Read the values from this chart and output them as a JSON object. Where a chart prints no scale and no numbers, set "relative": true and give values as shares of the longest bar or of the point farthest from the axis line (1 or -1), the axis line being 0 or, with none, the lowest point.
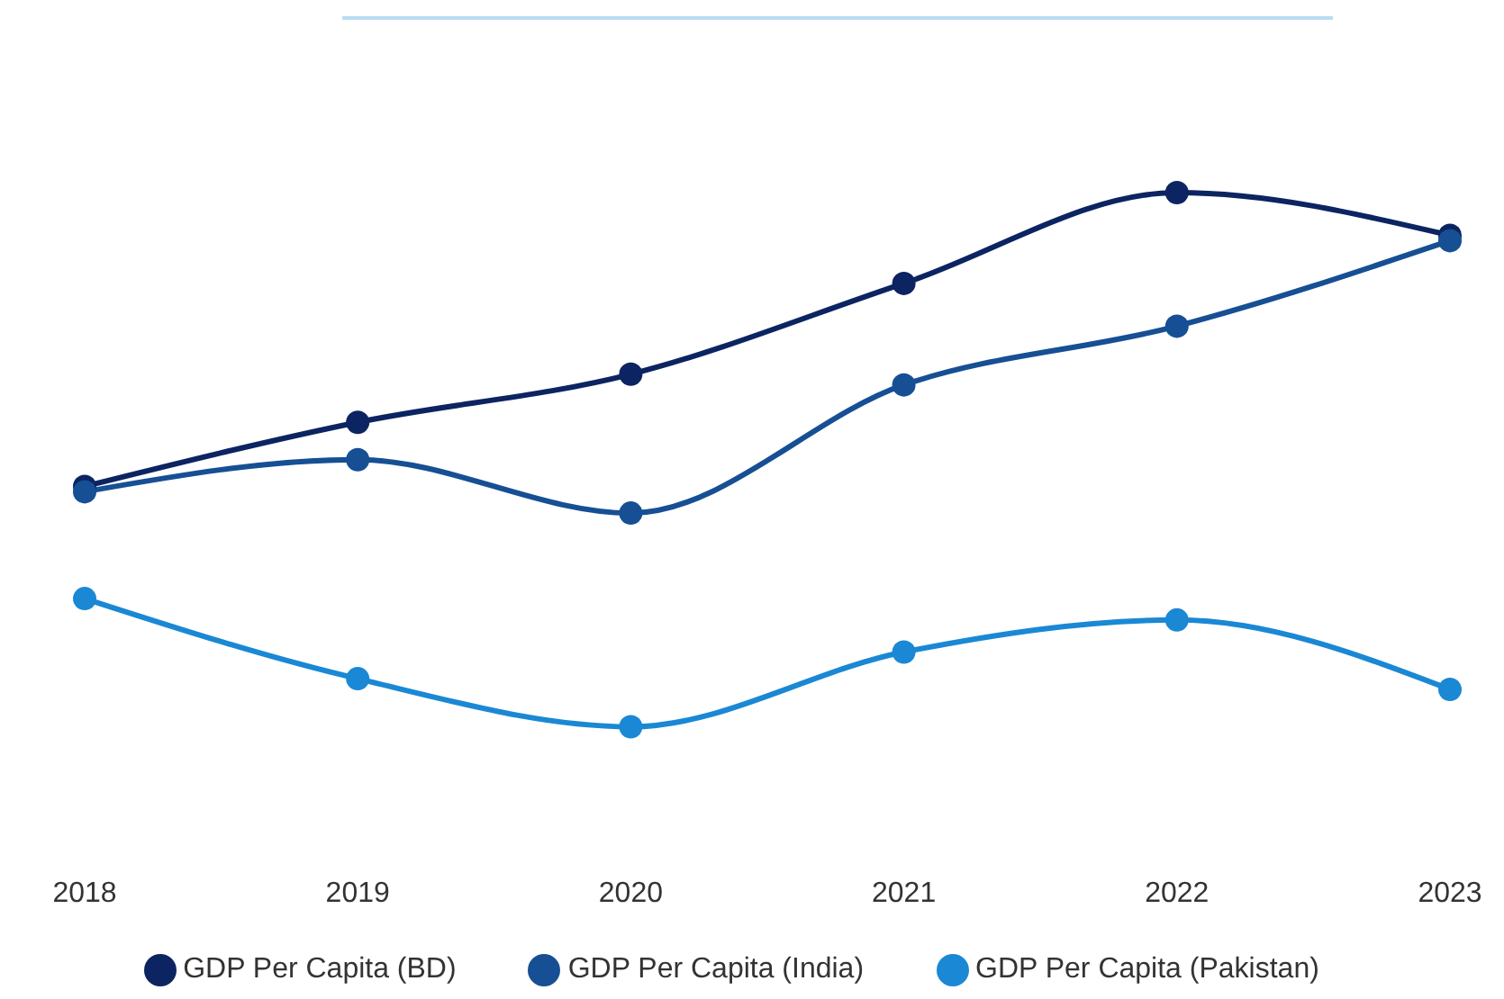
{
  "chart_data": {
    "type": "line",
    "relative": true,
    "categories": [
      "2018",
      "2019",
      "2020",
      "2021",
      "2022",
      "2023"
    ],
    "series": [
      {
        "name": "GDP Per Capita (BD)",
        "color": "#0c2461",
        "values": [
          0.45,
          0.57,
          0.66,
          0.83,
          1,
          0.92
        ]
      },
      {
        "name": "GDP Per Capita (India)",
        "color": "#164f94",
        "values": [
          0.44,
          0.5,
          0.4,
          0.64,
          0.75,
          0.91
        ]
      },
      {
        "name": "GDP Per Capita (Pakistan)",
        "color": "#1a88d4",
        "values": [
          0.24,
          0.09,
          0,
          0.14,
          0.2,
          0.07
        ]
      }
    ],
    "marker": "circle",
    "line_style": "solid",
    "legend": "bottom"
  }
}
